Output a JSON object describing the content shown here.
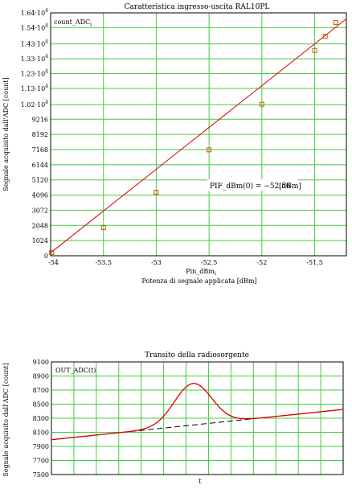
{
  "chart_data": [
    {
      "type": "line",
      "title": "Caratteristica ingresso-uscita RAL10PL",
      "series_label": "count_ADC",
      "series_label_sub": "i",
      "xlabel": "Pin_dBm",
      "xlabel_sub": "i",
      "xlabel2": "Potenza di segnale applicata [dBm]",
      "ylabel": "Segnale acquisito dall'ADC [count]",
      "xlim": [
        -54,
        -51.2
      ],
      "ylim": [
        0,
        16400
      ],
      "x_ticks": [
        -54,
        -53.5,
        -53,
        -52.5,
        -52,
        -51.5
      ],
      "x_tick_labels": [
        "-54",
        "-53.5",
        "-53",
        "-52.5",
        "-52",
        "-51.5"
      ],
      "y_ticks": [
        0,
        1024,
        2048,
        3072,
        4096,
        5120,
        6144,
        7168,
        8192,
        9216,
        10200,
        11300,
        12300,
        13300,
        14300,
        15400,
        16400
      ],
      "y_tick_labels": [
        {
          "base": "0",
          "exp": ""
        },
        {
          "base": "1024",
          "exp": ""
        },
        {
          "base": "2048",
          "exp": ""
        },
        {
          "base": "3072",
          "exp": ""
        },
        {
          "base": "4096",
          "exp": ""
        },
        {
          "base": "5120",
          "exp": ""
        },
        {
          "base": "6144",
          "exp": ""
        },
        {
          "base": "7168",
          "exp": ""
        },
        {
          "base": "8192",
          "exp": ""
        },
        {
          "base": "9216",
          "exp": ""
        },
        {
          "base": "1.02·10",
          "exp": "4"
        },
        {
          "base": "1.13·10",
          "exp": "4"
        },
        {
          "base": "1.23·10",
          "exp": "4"
        },
        {
          "base": "1.33·10",
          "exp": "4"
        },
        {
          "base": "1.43·10",
          "exp": "4"
        },
        {
          "base": "1.54·10",
          "exp": "4"
        },
        {
          "base": "1.64·10",
          "exp": "4"
        }
      ],
      "line": {
        "x": [
          -54,
          -51.2
        ],
        "y": [
          200,
          16000
        ]
      },
      "points": {
        "x": [
          -53.99,
          -53.5,
          -53.0,
          -52.5,
          -52.0,
          -51.5,
          -51.4,
          -51.3
        ],
        "y": [
          220,
          1900,
          4280,
          7150,
          10230,
          13860,
          14820,
          15750
        ]
      },
      "annotation": {
        "text": "PIF_dBm(0) = −52.56",
        "unit": "[dBm]"
      },
      "colors": {
        "line": "#dd0000",
        "grid": "#44cc44",
        "marker": "#cc5500"
      }
    },
    {
      "type": "line",
      "title": "Transito della radiosorgente",
      "series_label": "OUT_ADC(t)",
      "xlabel": "t",
      "ylabel": "Segnale acquisito dall'ADC [count]",
      "ylim": [
        7500,
        9100
      ],
      "xlim": [
        0,
        1
      ],
      "y_ticks": [
        7500,
        7700,
        7900,
        8100,
        8300,
        8500,
        8700,
        8900,
        9100
      ],
      "y_tick_labels": [
        "7500",
        "7700",
        "7900",
        "8100",
        "8300",
        "8500",
        "8700",
        "8900",
        "9100"
      ],
      "x_grid_count": 13,
      "baseline": {
        "x": [
          0,
          1
        ],
        "y": [
          7995,
          8425
        ]
      },
      "gaussian": {
        "center": 0.485,
        "width": 0.09,
        "amplitude": 590
      },
      "colors": {
        "signal": "#dd0000",
        "baseline": "#000000",
        "grid": "#44cc44"
      }
    }
  ]
}
